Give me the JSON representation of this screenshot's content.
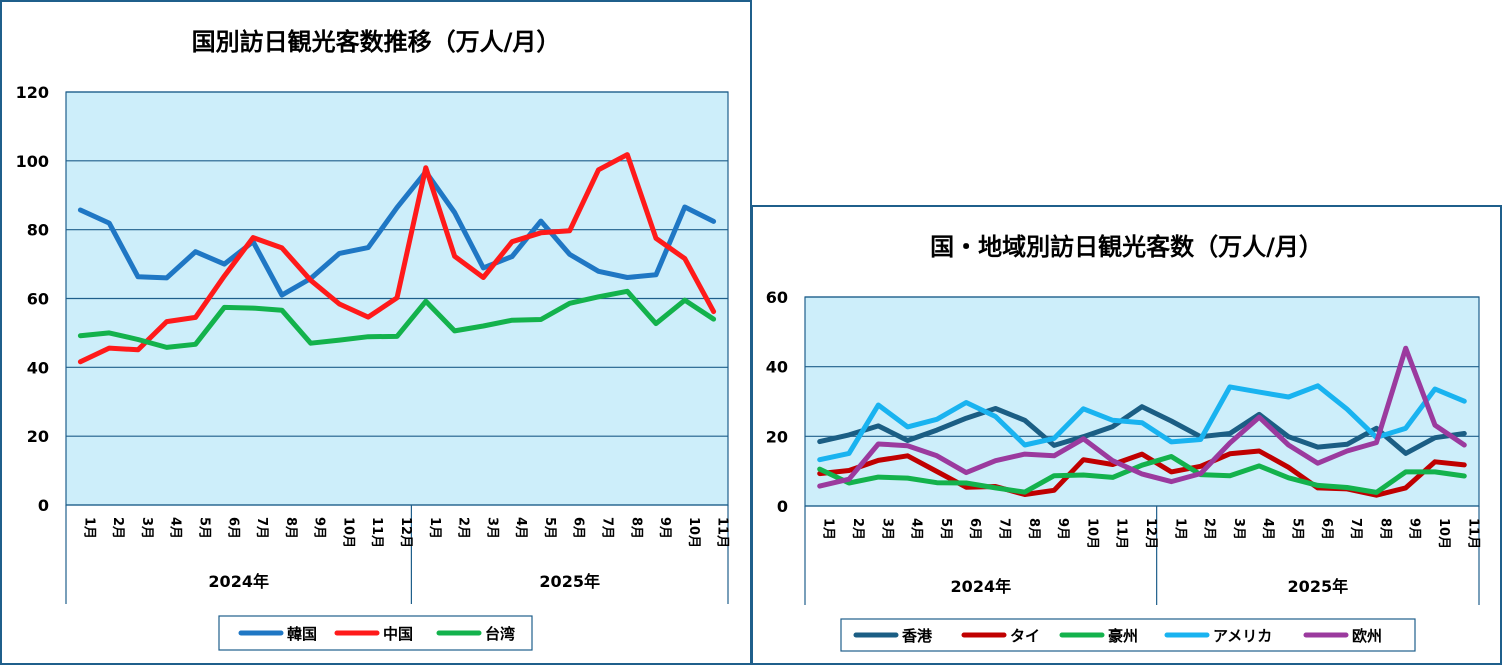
{
  "chart_data": [
    {
      "type": "line",
      "title": "国別訪日観光客数推移（万人/月）",
      "categories": [
        "1月",
        "2月",
        "3月",
        "4月",
        "5月",
        "6月",
        "7月",
        "8月",
        "9月",
        "10月",
        "11月",
        "12月",
        "1月",
        "2月",
        "3月",
        "4月",
        "5月",
        "6月",
        "7月",
        "8月",
        "9月",
        "10月",
        "11月"
      ],
      "groups": [
        {
          "label": "2024年",
          "count": 12
        },
        {
          "label": "2025年",
          "count": 11
        }
      ],
      "ylim": [
        0,
        120
      ],
      "yticks": [
        0,
        20,
        40,
        60,
        80,
        100,
        120
      ],
      "grid": true,
      "legend_position": "bottom",
      "series": [
        {
          "name": "韓国",
          "color": "#1f77c4",
          "values": [
            85.7,
            81.9,
            66.3,
            66.0,
            73.6,
            70.0,
            76.5,
            61.0,
            65.8,
            73.1,
            74.8,
            86.4,
            96.8,
            85.0,
            68.9,
            72.2,
            82.5,
            72.8,
            67.9,
            66.1,
            66.9,
            86.6,
            82.4
          ]
        },
        {
          "name": "中国",
          "color": "#ff1a1a",
          "values": [
            41.6,
            45.6,
            45.1,
            53.3,
            54.5,
            66.5,
            77.7,
            74.7,
            65.3,
            58.4,
            54.6,
            60.2,
            98.0,
            72.3,
            66.1,
            76.5,
            79.1,
            79.7,
            97.4,
            101.8,
            77.5,
            71.6,
            56.2
          ]
        },
        {
          "name": "台湾",
          "color": "#13b24c",
          "values": [
            49.2,
            50.0,
            48.1,
            45.8,
            46.7,
            57.4,
            57.2,
            56.6,
            47.0,
            47.9,
            48.9,
            49.0,
            59.2,
            50.6,
            52.0,
            53.7,
            53.9,
            58.6,
            60.5,
            62.1,
            52.7,
            59.5,
            54.0
          ]
        }
      ]
    },
    {
      "type": "line",
      "title": "国・地域別訪日観光客数（万人/月）",
      "categories": [
        "1月",
        "2月",
        "3月",
        "4月",
        "5月",
        "6月",
        "7月",
        "8月",
        "9月",
        "10月",
        "11月",
        "12月",
        "1月",
        "2月",
        "3月",
        "4月",
        "5月",
        "6月",
        "7月",
        "8月",
        "9月",
        "10月",
        "11月"
      ],
      "groups": [
        {
          "label": "2024年",
          "count": 12
        },
        {
          "label": "2025年",
          "count": 11
        }
      ],
      "ylim": [
        0,
        60
      ],
      "yticks": [
        0,
        20,
        40,
        60
      ],
      "grid": true,
      "legend_position": "bottom",
      "series": [
        {
          "name": "香港",
          "color": "#1b5e84",
          "values": [
            18.5,
            20.4,
            23.0,
            18.8,
            21.8,
            25.2,
            28.0,
            24.6,
            17.4,
            19.9,
            22.8,
            28.5,
            24.4,
            19.9,
            20.8,
            26.3,
            19.9,
            16.9,
            17.7,
            22.3,
            15.1,
            19.6,
            20.8
          ]
        },
        {
          "name": "タイ",
          "color": "#c00000",
          "values": [
            9.3,
            10.2,
            13.1,
            14.4,
            9.9,
            5.4,
            5.6,
            3.3,
            4.5,
            13.3,
            11.9,
            14.9,
            9.8,
            11.4,
            15.0,
            15.8,
            11.1,
            5.2,
            4.9,
            3.1,
            5.2,
            12.7,
            11.8
          ]
        },
        {
          "name": "豪州",
          "color": "#13b24c",
          "values": [
            10.6,
            6.6,
            8.3,
            8.0,
            6.7,
            6.6,
            5.2,
            4.0,
            8.7,
            8.9,
            8.2,
            11.7,
            14.2,
            9.0,
            8.7,
            11.5,
            8.1,
            5.9,
            5.3,
            3.9,
            9.8,
            9.8,
            8.6
          ]
        },
        {
          "name": "アメリカ",
          "color": "#19b3f0",
          "values": [
            13.3,
            15.1,
            29.0,
            22.7,
            24.9,
            29.7,
            25.7,
            17.5,
            19.4,
            27.9,
            24.6,
            23.9,
            18.4,
            19.1,
            34.2,
            32.7,
            31.3,
            34.5,
            27.8,
            19.7,
            22.3,
            33.6,
            30.1
          ]
        },
        {
          "name": "欧州",
          "color": "#9b3a9e",
          "values": [
            5.7,
            7.7,
            17.8,
            17.3,
            14.4,
            9.6,
            13.0,
            14.9,
            14.4,
            19.3,
            13.0,
            9.2,
            7.0,
            9.3,
            18.1,
            25.5,
            17.5,
            12.3,
            15.8,
            18.2,
            45.3,
            23.2,
            17.5
          ]
        }
      ]
    }
  ]
}
